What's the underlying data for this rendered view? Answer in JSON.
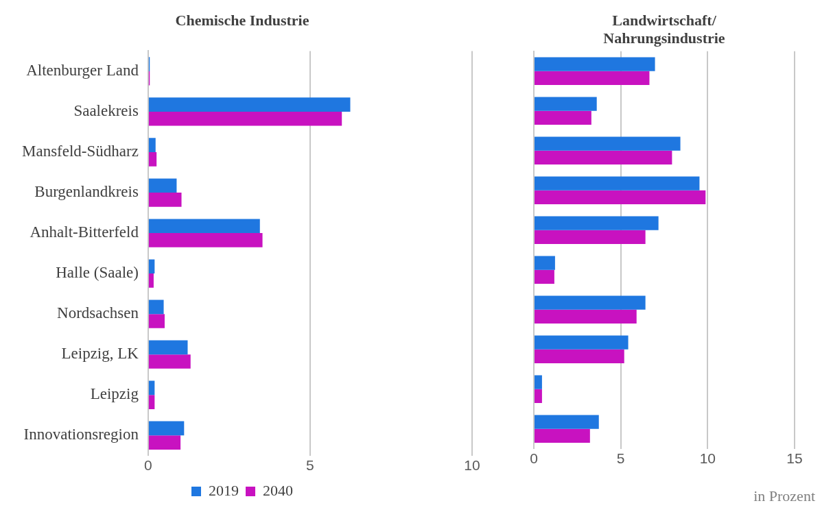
{
  "chart_data": [
    {
      "type": "bar",
      "orientation": "horizontal",
      "title": "Chemische Industrie",
      "categories": [
        "Altenburger Land",
        "Saalekreis",
        "Mansfeld-Südharz",
        "Burgenlandkreis",
        "Anhalt-Bitterfeld",
        "Halle (Saale)",
        "Nordsachsen",
        "Leipzig, LK",
        "Leipzig",
        "Innovationsregion"
      ],
      "series": [
        {
          "name": "2019",
          "color": "#1f77e0",
          "values": [
            0.05,
            6.24,
            0.23,
            0.88,
            3.45,
            0.2,
            0.48,
            1.22,
            0.2,
            1.11
          ]
        },
        {
          "name": "2040",
          "color": "#c812c0",
          "values": [
            0.05,
            5.98,
            0.26,
            1.03,
            3.53,
            0.17,
            0.51,
            1.31,
            0.2,
            1.0
          ]
        }
      ],
      "xlim": [
        0,
        10
      ],
      "xticks": [
        0,
        5,
        10
      ],
      "grid": "x",
      "legend": "bottom"
    },
    {
      "type": "bar",
      "orientation": "horizontal",
      "title": "Landwirtschaft/ Nahrungsindustrie",
      "categories": [
        null,
        null,
        null,
        null,
        null,
        null,
        null,
        null,
        null,
        null
      ],
      "series": [
        {
          "color": "#1f77e0",
          "values": [
            6.97,
            3.62,
            8.43,
            9.53,
            7.17,
            1.22,
            6.42,
            5.43,
            0.47,
            3.74
          ]
        },
        {
          "color": "#c812c0",
          "values": [
            6.65,
            3.31,
            7.95,
            9.88,
            6.42,
            1.18,
            5.91,
            5.2,
            0.47,
            3.23
          ]
        }
      ],
      "xlim": [
        0,
        15
      ],
      "xticks": [
        0,
        5,
        10,
        15
      ],
      "grid": "x",
      "tick_labels": "x",
      "annotations": [
        "in Prozent"
      ]
    }
  ]
}
